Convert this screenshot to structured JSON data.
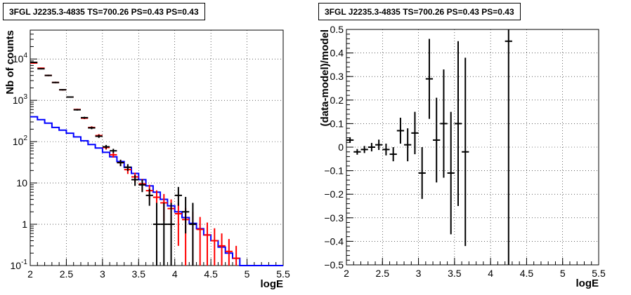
{
  "chart_data": [
    {
      "type": "line",
      "title": "3FGL J2235.3-4835 TS=700.26 PS=0.43 PS=0.43",
      "xlabel": "logE",
      "ylabel": "Nb of counts",
      "xlim": [
        2,
        5.5
      ],
      "ylim": [
        0.1,
        50000
      ],
      "yscale": "log",
      "grid": true,
      "xticks": [
        "2",
        "2.5",
        "3",
        "3.5",
        "4",
        "4.5",
        "5",
        "5.5"
      ],
      "yticks": [
        "10^-1",
        "1",
        "10",
        "10^2",
        "10^3",
        "10^4"
      ],
      "series": [
        {
          "color": "#0000ff",
          "style": "step",
          "x": [
            2.0,
            2.1,
            2.2,
            2.3,
            2.4,
            2.5,
            2.6,
            2.7,
            2.8,
            2.9,
            3.0,
            3.1,
            3.2,
            3.3,
            3.4,
            3.5,
            3.6,
            3.7,
            3.8,
            3.9,
            4.0,
            4.1,
            4.2,
            4.3,
            4.4,
            4.5,
            4.6,
            4.7,
            4.8,
            4.9,
            5.0,
            5.1,
            5.2,
            5.3,
            5.4
          ],
          "values": [
            400,
            340,
            280,
            220,
            190,
            160,
            130,
            105,
            85,
            70,
            55,
            43,
            33,
            24,
            17,
            12,
            8.5,
            6,
            4,
            2.8,
            2.0,
            1.45,
            1.05,
            0.78,
            0.55,
            0.4,
            0.28,
            0.2,
            0.15,
            0.1,
            0.1,
            0.1,
            0.1,
            0.1,
            0.1
          ]
        },
        {
          "color": "#ff0000",
          "style": "errorbar",
          "x": [
            2.05,
            2.15,
            2.25,
            2.35,
            2.45,
            2.55,
            2.65,
            2.75,
            2.85,
            2.95,
            3.05,
            3.15,
            3.25,
            3.35,
            3.45,
            3.55,
            3.65,
            3.75,
            3.85,
            3.95,
            4.05,
            4.15,
            4.25,
            4.35,
            4.45,
            4.55,
            4.65,
            4.75,
            4.85
          ],
          "values": [
            8000,
            6000,
            4000,
            2700,
            1800,
            1200,
            600,
            370,
            220,
            140,
            72,
            48,
            31,
            21,
            14,
            9.5,
            6.5,
            4.5,
            3.3,
            2.4,
            1.8,
            1.3,
            1.0,
            0.75,
            0.55,
            0.4,
            0.3,
            0.22,
            0.15
          ],
          "err_low": [
            300,
            200,
            150,
            100,
            70,
            40,
            25,
            20,
            15,
            12,
            8,
            7,
            5.5,
            4.5,
            3.7,
            3,
            2.5,
            2.1,
            2.1,
            1.6,
            1.5,
            1.2,
            1.0,
            0.75,
            0.55,
            0.4,
            0.3,
            0.22,
            0.15
          ],
          "err_high": [
            300,
            200,
            150,
            100,
            70,
            40,
            25,
            20,
            15,
            12,
            8,
            7,
            5.5,
            4.5,
            3.7,
            3,
            2.5,
            2.1,
            2.1,
            1.6,
            1.5,
            1.2,
            1.0,
            0.75,
            0.55,
            0.4,
            0.3,
            0.22,
            0.15
          ]
        },
        {
          "color": "#000000",
          "style": "errorbar",
          "x": [
            2.05,
            2.15,
            2.25,
            2.35,
            2.45,
            2.55,
            2.65,
            2.75,
            2.85,
            2.95,
            3.05,
            3.15,
            3.25,
            3.35,
            3.45,
            3.55,
            3.65,
            3.75,
            3.85,
            3.95,
            4.05,
            4.15,
            4.25
          ],
          "values": [
            8300,
            5800,
            4000,
            2700,
            1800,
            1200,
            590,
            380,
            215,
            135,
            75,
            60,
            31,
            24,
            12,
            9,
            5,
            1.0,
            1.0,
            1.0,
            5.0,
            2.0,
            1.0
          ],
          "err_low": [
            300,
            200,
            150,
            100,
            70,
            40,
            25,
            20,
            15,
            12,
            8,
            7,
            5.5,
            4.5,
            3.5,
            3,
            2.2,
            0.9,
            0.9,
            0.9,
            2.2,
            1.4,
            0.9
          ],
          "err_high": [
            300,
            200,
            150,
            100,
            70,
            40,
            25,
            20,
            15,
            12,
            8,
            7,
            5.5,
            4.5,
            3.5,
            3,
            2.2,
            2.3,
            2.3,
            2.3,
            3.0,
            2.6,
            2.3
          ]
        }
      ]
    },
    {
      "type": "scatter",
      "title": "3FGL J2235.3-4835 TS=700.26 PS=0.43 PS=0.43",
      "xlabel": "logE",
      "ylabel": "(data-model)/model",
      "xlim": [
        2,
        5.5
      ],
      "ylim": [
        -0.5,
        0.5
      ],
      "grid": true,
      "xticks": [
        "2",
        "2.5",
        "3",
        "3.5",
        "4",
        "4.5",
        "5",
        "5.5"
      ],
      "yticks": [
        "−0.5",
        "−0.4",
        "−0.3",
        "−0.2",
        "−0.1",
        "0",
        "0.1",
        "0.2",
        "0.3",
        "0.4",
        "0.5"
      ],
      "series": [
        {
          "color": "#000000",
          "style": "errorbar",
          "x": [
            2.05,
            2.15,
            2.25,
            2.35,
            2.45,
            2.55,
            2.65,
            2.75,
            2.85,
            2.95,
            3.05,
            3.15,
            3.25,
            3.35,
            3.45,
            3.55,
            3.65,
            4.25
          ],
          "values": [
            0.03,
            -0.02,
            -0.01,
            0.0,
            0.01,
            -0.01,
            -0.03,
            0.07,
            0.01,
            0.06,
            -0.11,
            0.29,
            0.03,
            0.1,
            -0.11,
            0.1,
            -0.02,
            0.45
          ],
          "err": [
            0.012,
            0.012,
            0.015,
            0.018,
            0.022,
            0.025,
            0.03,
            0.055,
            0.07,
            0.09,
            0.11,
            0.17,
            0.18,
            0.23,
            0.26,
            0.35,
            0.4,
            0.95
          ]
        }
      ]
    }
  ]
}
